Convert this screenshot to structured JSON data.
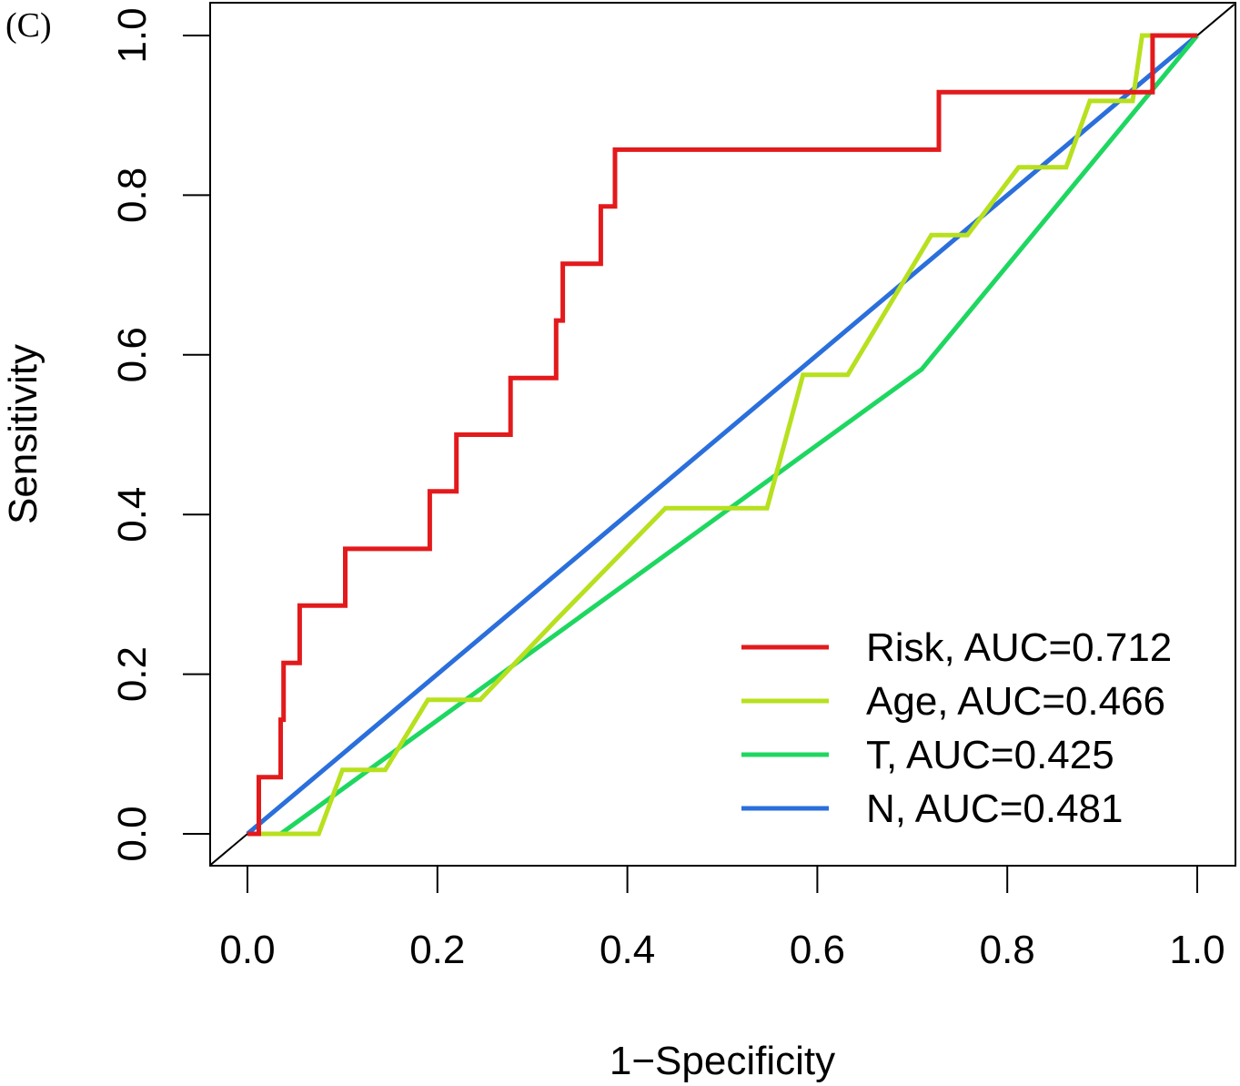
{
  "panel_label": "(C)",
  "chart_data": {
    "type": "line",
    "xlabel": "1−Specificity",
    "ylabel": "Sensitivity",
    "xlim": [
      0,
      1
    ],
    "ylim": [
      0,
      1
    ],
    "x_ticks": [
      "0.0",
      "0.2",
      "0.4",
      "0.6",
      "0.8",
      "1.0"
    ],
    "y_ticks": [
      "0.0",
      "0.2",
      "0.4",
      "0.6",
      "0.8",
      "1.0"
    ],
    "reference_line": {
      "x": [
        0,
        1
      ],
      "y": [
        0,
        1
      ],
      "color": "#000000"
    },
    "legend_position": "bottom-right",
    "series": [
      {
        "name": "Risk, AUC=0.712",
        "color": "#e31a1c",
        "x": [
          0,
          0.012,
          0.012,
          0.035,
          0.035,
          0.038,
          0.038,
          0.055,
          0.055,
          0.103,
          0.103,
          0.192,
          0.192,
          0.22,
          0.22,
          0.277,
          0.277,
          0.325,
          0.325,
          0.332,
          0.332,
          0.372,
          0.372,
          0.387,
          0.387,
          0.728,
          0.728,
          0.953,
          0.953,
          1.0
        ],
        "y": [
          0,
          0,
          0.071,
          0.071,
          0.143,
          0.143,
          0.214,
          0.214,
          0.286,
          0.286,
          0.357,
          0.357,
          0.429,
          0.429,
          0.5,
          0.5,
          0.571,
          0.571,
          0.643,
          0.643,
          0.714,
          0.714,
          0.786,
          0.786,
          0.857,
          0.857,
          0.929,
          0.929,
          1.0,
          1.0
        ]
      },
      {
        "name": "Age, AUC=0.466",
        "color": "#b7e01e",
        "x": [
          0,
          0.075,
          0.1,
          0.145,
          0.19,
          0.245,
          0.325,
          0.44,
          0.547,
          0.585,
          0.632,
          0.72,
          0.758,
          0.812,
          0.862,
          0.887,
          0.932,
          0.942,
          1.0
        ],
        "y": [
          0,
          0,
          0.08,
          0.08,
          0.168,
          0.168,
          0.268,
          0.408,
          0.408,
          0.575,
          0.575,
          0.75,
          0.75,
          0.835,
          0.835,
          0.918,
          0.918,
          1.0,
          1.0
        ]
      },
      {
        "name": "T, AUC=0.425",
        "color": "#1ed760",
        "x": [
          0,
          0.035,
          0.71,
          1.0
        ],
        "y": [
          0,
          0,
          0.582,
          1.0
        ]
      },
      {
        "name": "N, AUC=0.481",
        "color": "#2a6fdb",
        "x": [
          0,
          1.0
        ],
        "y": [
          0,
          1.0
        ]
      }
    ]
  }
}
